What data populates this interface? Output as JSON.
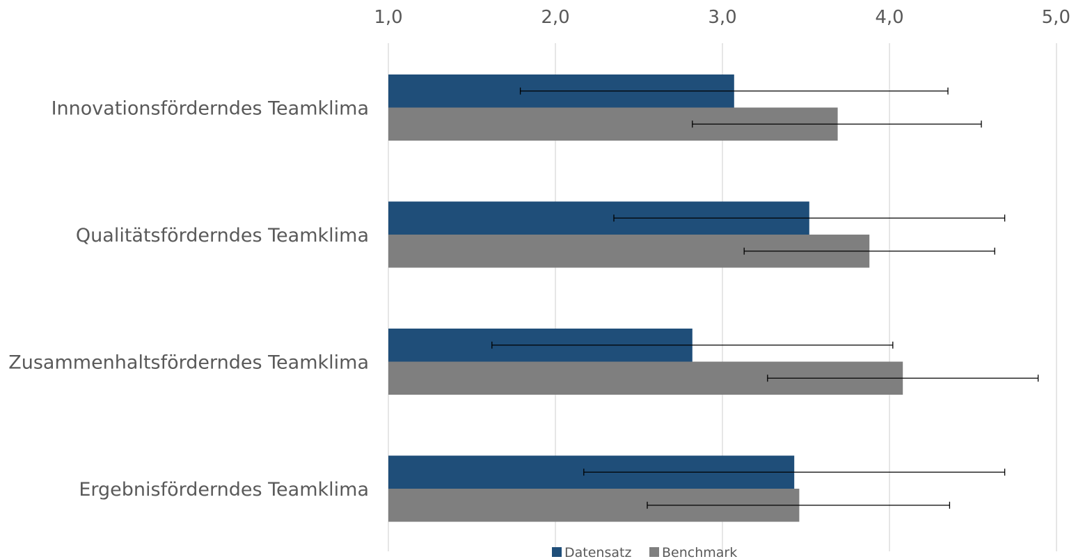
{
  "chart_data": {
    "type": "bar",
    "orientation": "horizontal",
    "xlim": [
      1.0,
      5.0
    ],
    "ticks": [
      "1,0",
      "2,0",
      "3,0",
      "4,0",
      "5,0"
    ],
    "tick_values": [
      1,
      2,
      3,
      4,
      5
    ],
    "grid": true,
    "axis_position": "top",
    "legend_position": "bottom",
    "categories": [
      "Innovationsförderndes Teamklima",
      "Qualitätsförderndes Teamklima",
      "Zusammenhaltsförderndes Teamklima",
      "Ergebnisförderndes Teamklima"
    ],
    "series": [
      {
        "name": "Datensatz",
        "color": "#1f4e79",
        "values": [
          3.07,
          3.52,
          2.82,
          3.43
        ],
        "error_low": [
          1.79,
          2.35,
          1.62,
          2.17
        ],
        "error_high": [
          4.35,
          4.69,
          4.02,
          4.69
        ]
      },
      {
        "name": "Benchmark",
        "color": "#7f7f7f",
        "values": [
          3.69,
          3.88,
          4.08,
          3.46
        ],
        "error_low": [
          2.82,
          3.13,
          3.27,
          2.55
        ],
        "error_high": [
          4.55,
          4.63,
          4.89,
          4.36
        ]
      }
    ]
  }
}
